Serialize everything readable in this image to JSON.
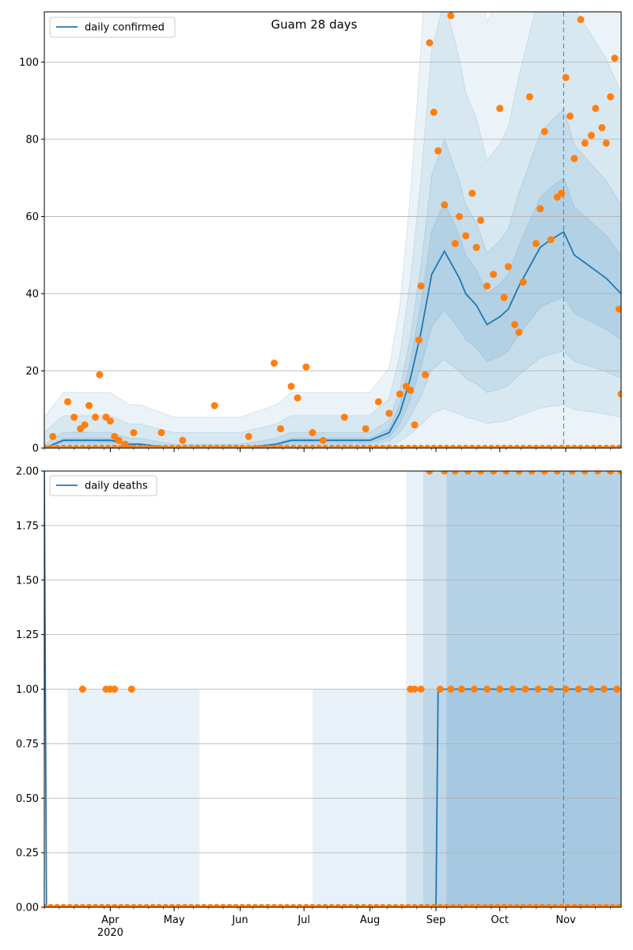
{
  "chart_data": [
    {
      "type": "line",
      "title": "Guam 28 days",
      "legend": [
        "daily confirmed"
      ],
      "legend_placement": "top-left",
      "grid": "y",
      "xlim": [
        "2020-03-01",
        "2020-11-27"
      ],
      "ylim": [
        0,
        113
      ],
      "yticks": [
        0,
        20,
        40,
        60,
        80,
        100
      ],
      "ytick_labels": [
        "0",
        "20",
        "40",
        "60",
        "80",
        "100"
      ],
      "forecast_start": "2020-10-31",
      "colors": {
        "line": "#1f77b4",
        "points": "#ff7f0e",
        "band": "#1f77b4"
      },
      "series": [
        {
          "name": "daily confirmed",
          "kind": "line",
          "x": [
            "2020-03-01",
            "2020-03-10",
            "2020-04-01",
            "2020-04-10",
            "2020-04-15",
            "2020-05-01",
            "2020-06-01",
            "2020-06-18",
            "2020-06-25",
            "2020-07-01",
            "2020-07-15",
            "2020-08-01",
            "2020-08-10",
            "2020-08-15",
            "2020-08-20",
            "2020-08-25",
            "2020-08-30",
            "2020-09-05",
            "2020-09-08",
            "2020-09-12",
            "2020-09-15",
            "2020-09-20",
            "2020-09-25",
            "2020-10-01",
            "2020-10-05",
            "2020-10-10",
            "2020-10-15",
            "2020-10-20",
            "2020-10-25",
            "2020-10-31",
            "2020-11-05",
            "2020-11-10",
            "2020-11-15",
            "2020-11-20",
            "2020-11-27"
          ],
          "y": [
            0,
            2,
            2,
            1,
            1,
            0,
            0,
            1,
            2,
            2,
            2,
            2,
            4,
            9,
            18,
            30,
            45,
            51,
            48,
            44,
            40,
            37,
            32,
            34,
            36,
            42,
            47,
            52,
            54,
            56,
            50,
            48,
            46,
            44,
            40
          ]
        },
        {
          "name": "observed",
          "kind": "scatter",
          "x": [
            "2020-03-01",
            "2020-03-05",
            "2020-03-12",
            "2020-03-15",
            "2020-03-18",
            "2020-03-20",
            "2020-03-22",
            "2020-03-25",
            "2020-03-27",
            "2020-03-30",
            "2020-04-01",
            "2020-04-03",
            "2020-04-05",
            "2020-04-08",
            "2020-04-10",
            "2020-04-12",
            "2020-04-25",
            "2020-05-05",
            "2020-05-20",
            "2020-06-05",
            "2020-06-17",
            "2020-06-20",
            "2020-06-25",
            "2020-06-28",
            "2020-07-02",
            "2020-07-05",
            "2020-07-10",
            "2020-07-20",
            "2020-07-30",
            "2020-08-05",
            "2020-08-10",
            "2020-08-15",
            "2020-08-18",
            "2020-08-20",
            "2020-08-22",
            "2020-08-24",
            "2020-08-25",
            "2020-08-27",
            "2020-08-29",
            "2020-08-31",
            "2020-09-02",
            "2020-09-05",
            "2020-09-08",
            "2020-09-10",
            "2020-09-12",
            "2020-09-15",
            "2020-09-18",
            "2020-09-20",
            "2020-09-22",
            "2020-09-25",
            "2020-09-28",
            "2020-10-01",
            "2020-10-03",
            "2020-10-05",
            "2020-10-08",
            "2020-10-10",
            "2020-10-12",
            "2020-10-15",
            "2020-10-18",
            "2020-10-20",
            "2020-10-22",
            "2020-10-25",
            "2020-10-28",
            "2020-10-30",
            "2020-11-01",
            "2020-11-03",
            "2020-11-05",
            "2020-11-08",
            "2020-11-10",
            "2020-11-13",
            "2020-11-15",
            "2020-11-18",
            "2020-11-20",
            "2020-11-22",
            "2020-11-24",
            "2020-11-26",
            "2020-11-27"
          ],
          "y": [
            0,
            3,
            12,
            8,
            5,
            6,
            11,
            8,
            19,
            8,
            7,
            3,
            2,
            1,
            0,
            4,
            4,
            2,
            11,
            3,
            22,
            5,
            16,
            13,
            21,
            4,
            2,
            8,
            5,
            12,
            9,
            14,
            16,
            15,
            6,
            28,
            42,
            19,
            105,
            87,
            77,
            63,
            112,
            53,
            60,
            55,
            66,
            52,
            59,
            42,
            45,
            88,
            39,
            47,
            32,
            30,
            43,
            91,
            53,
            62,
            82,
            54,
            65,
            66,
            96,
            86,
            75,
            111,
            79,
            81,
            88,
            83,
            79,
            91,
            101,
            36,
            14
          ]
        }
      ]
    },
    {
      "type": "line",
      "legend": [
        "daily deaths"
      ],
      "legend_placement": "top-left",
      "grid": "y",
      "xlim": [
        "2020-03-01",
        "2020-11-27"
      ],
      "ylim": [
        0,
        2
      ],
      "yticks": [
        0,
        0.25,
        0.5,
        0.75,
        1.0,
        1.25,
        1.5,
        1.75,
        2.0
      ],
      "ytick_labels": [
        "0.00",
        "0.25",
        "0.50",
        "0.75",
        "1.00",
        "1.25",
        "1.50",
        "1.75",
        "2.00"
      ],
      "xticks": [
        "2020-04-01",
        "2020-05-01",
        "2020-06-01",
        "2020-07-01",
        "2020-08-01",
        "2020-09-01",
        "2020-10-01",
        "2020-11-01"
      ],
      "xtick_labels": [
        "Apr",
        "May",
        "Jun",
        "Jul",
        "Aug",
        "Sep",
        "Oct",
        "Nov"
      ],
      "xtick_sublabel": "2020",
      "forecast_start": "2020-10-31",
      "colors": {
        "line": "#1f77b4",
        "points": "#ff7f0e",
        "band": "#1f77b4"
      },
      "series": [
        {
          "name": "daily deaths",
          "kind": "line",
          "x": [
            "2020-03-01",
            "2020-03-02",
            "2020-09-01",
            "2020-09-02",
            "2020-11-27"
          ],
          "y": [
            2,
            0,
            0,
            1,
            1
          ]
        },
        {
          "name": "observed",
          "kind": "scatter",
          "x": [
            "2020-03-19",
            "2020-03-30",
            "2020-04-01",
            "2020-04-03",
            "2020-04-11",
            "2020-08-20",
            "2020-08-22",
            "2020-08-25",
            "2020-08-29",
            "2020-09-03",
            "2020-09-05",
            "2020-09-08",
            "2020-09-10",
            "2020-09-13",
            "2020-09-16",
            "2020-09-19",
            "2020-09-22",
            "2020-09-25",
            "2020-09-28",
            "2020-10-01",
            "2020-10-04",
            "2020-10-07",
            "2020-10-10",
            "2020-10-13",
            "2020-10-16",
            "2020-10-19",
            "2020-10-22",
            "2020-10-25",
            "2020-10-28",
            "2020-11-01",
            "2020-11-04",
            "2020-11-07",
            "2020-11-10",
            "2020-11-13",
            "2020-11-16",
            "2020-11-19",
            "2020-11-22",
            "2020-11-25",
            "2020-11-27"
          ],
          "y": [
            1,
            1,
            1,
            1,
            1,
            1,
            1,
            1,
            2,
            1,
            2,
            1,
            2,
            1,
            2,
            1,
            2,
            1,
            2,
            1,
            2,
            1,
            2,
            1,
            2,
            1,
            2,
            1,
            2,
            1,
            2,
            1,
            2,
            1,
            2,
            1,
            2,
            1,
            2
          ]
        }
      ]
    }
  ]
}
